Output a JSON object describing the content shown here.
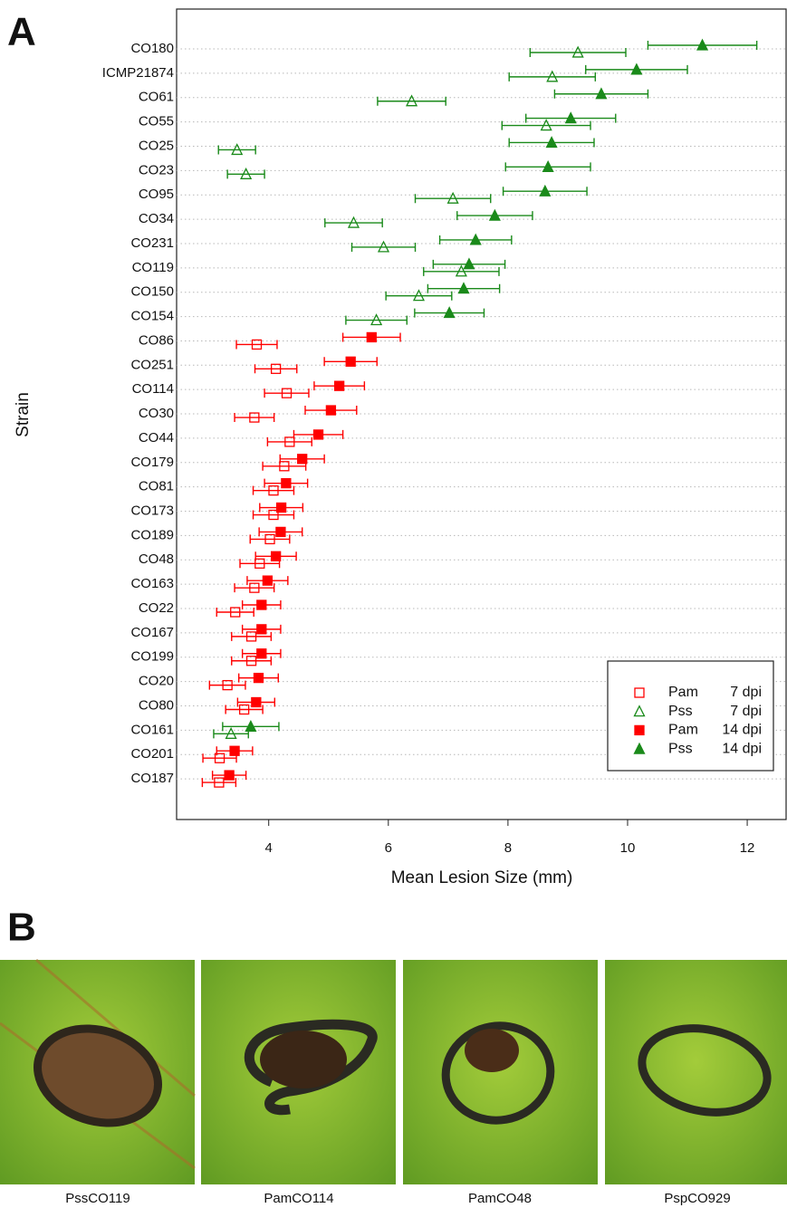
{
  "chart_data": {
    "type": "dot",
    "panel_label": "A",
    "y_label": "Strain",
    "x_label": "Mean Lesion Size (mm)",
    "categories": [
      "CO180",
      "ICMP21874",
      "CO61",
      "CO55",
      "CO25",
      "CO23",
      "CO95",
      "CO34",
      "CO231",
      "CO119",
      "CO150",
      "CO154",
      "CO86",
      "CO251",
      "CO114",
      "CO30",
      "CO44",
      "CO179",
      "CO81",
      "CO173",
      "CO189",
      "CO48",
      "CO163",
      "CO22",
      "CO167",
      "CO199",
      "CO20",
      "CO80",
      "CO161",
      "CO201",
      "CO187"
    ],
    "series": [
      {
        "name": "Pam",
        "dpi": "7 dpi",
        "color": "#ff0000",
        "marker": "square",
        "filled": false,
        "values": [
          null,
          null,
          null,
          null,
          null,
          null,
          null,
          null,
          null,
          null,
          null,
          null,
          3.8,
          4.12,
          4.3,
          3.76,
          4.35,
          4.26,
          4.08,
          4.08,
          4.02,
          3.85,
          3.76,
          3.44,
          3.71,
          3.71,
          3.31,
          3.59,
          null,
          3.18,
          3.17
        ],
        "errors": [
          null,
          null,
          null,
          null,
          null,
          null,
          null,
          null,
          null,
          null,
          null,
          null,
          0.34,
          0.35,
          0.37,
          0.33,
          0.37,
          0.36,
          0.34,
          0.34,
          0.33,
          0.33,
          0.33,
          0.31,
          0.33,
          0.33,
          0.3,
          0.31,
          null,
          0.28,
          0.28
        ]
      },
      {
        "name": "Pss",
        "dpi": "7 dpi",
        "color": "#1a8a1a",
        "marker": "triangle",
        "filled": false,
        "values": [
          9.17,
          8.74,
          6.39,
          8.64,
          3.47,
          3.62,
          7.08,
          5.42,
          5.92,
          7.22,
          6.51,
          5.8,
          null,
          null,
          null,
          null,
          null,
          null,
          null,
          null,
          null,
          null,
          null,
          null,
          null,
          null,
          null,
          null,
          3.37,
          null,
          null
        ],
        "errors": [
          0.8,
          0.72,
          0.57,
          0.74,
          0.31,
          0.31,
          0.63,
          0.48,
          0.53,
          0.63,
          0.55,
          0.51,
          null,
          null,
          null,
          null,
          null,
          null,
          null,
          null,
          null,
          null,
          null,
          null,
          null,
          null,
          null,
          null,
          0.29,
          null,
          null
        ]
      },
      {
        "name": "Pam",
        "dpi": "14 dpi",
        "color": "#ff0000",
        "marker": "square",
        "filled": true,
        "values": [
          null,
          null,
          null,
          null,
          null,
          null,
          null,
          null,
          null,
          null,
          null,
          null,
          5.72,
          5.37,
          5.18,
          5.04,
          4.83,
          4.56,
          4.29,
          4.21,
          4.2,
          4.12,
          3.98,
          3.88,
          3.88,
          3.88,
          3.83,
          3.79,
          null,
          3.43,
          3.34
        ],
        "errors": [
          null,
          null,
          null,
          null,
          null,
          null,
          null,
          null,
          null,
          null,
          null,
          null,
          0.48,
          0.44,
          0.42,
          0.43,
          0.41,
          0.37,
          0.36,
          0.36,
          0.36,
          0.34,
          0.34,
          0.32,
          0.32,
          0.32,
          0.33,
          0.31,
          null,
          0.3,
          0.28
        ]
      },
      {
        "name": "Pss",
        "dpi": "14 dpi",
        "color": "#1a8a1a",
        "marker": "triangle",
        "filled": true,
        "values": [
          11.25,
          10.15,
          9.56,
          9.05,
          8.73,
          8.67,
          8.62,
          7.78,
          7.46,
          7.35,
          7.26,
          7.02,
          null,
          null,
          null,
          null,
          null,
          null,
          null,
          null,
          null,
          null,
          null,
          null,
          null,
          null,
          null,
          null,
          3.7,
          null,
          null
        ],
        "errors": [
          0.91,
          0.85,
          0.78,
          0.75,
          0.71,
          0.71,
          0.7,
          0.63,
          0.6,
          0.6,
          0.6,
          0.58,
          null,
          null,
          null,
          null,
          null,
          null,
          null,
          null,
          null,
          null,
          null,
          null,
          null,
          null,
          null,
          null,
          0.47,
          null,
          null
        ]
      }
    ],
    "xlim": [
      2.46,
      12.65
    ],
    "xticks": [
      4,
      6,
      8,
      10,
      12
    ],
    "grid": true,
    "legend": "bottom-right"
  },
  "panel_b": {
    "label": "B",
    "images": [
      {
        "caption": "PssCO119"
      },
      {
        "caption": "PamCO114"
      },
      {
        "caption": "PamCO48"
      },
      {
        "caption": "PspCO929"
      }
    ]
  }
}
